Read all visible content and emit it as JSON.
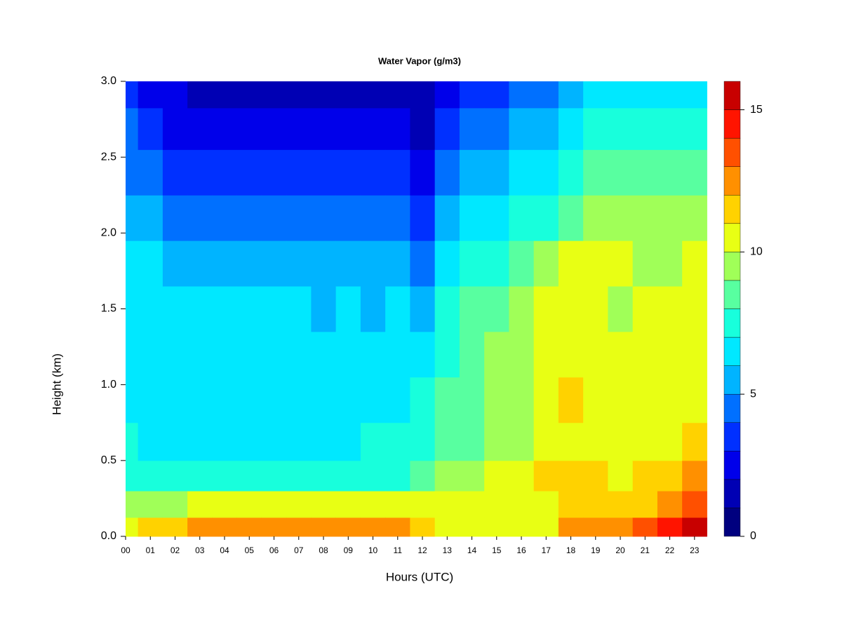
{
  "chart_data": {
    "type": "filled-contour",
    "title": "Water Vapor (g/m3)",
    "x_label": "Hours (UTC)",
    "y_label": "Height (km)",
    "x": [
      0,
      1,
      2,
      3,
      4,
      5,
      6,
      7,
      8,
      9,
      10,
      11,
      12,
      13,
      14,
      15,
      16,
      17,
      18,
      19,
      20,
      21,
      22,
      23
    ],
    "y": [
      0.05,
      0.2,
      0.4,
      0.6,
      0.9,
      1.2,
      1.5,
      1.8,
      2.1,
      2.4,
      2.7,
      2.95
    ],
    "z": [
      [
        10.5,
        9.5,
        7.8,
        7.2,
        6.8,
        6.5,
        6.5,
        6.2,
        5.3,
        4.6,
        4.2,
        3.5
      ],
      [
        11.2,
        9.6,
        7.6,
        6.8,
        6.5,
        6.5,
        6.3,
        6.0,
        5.0,
        4.3,
        3.6,
        2.8
      ],
      [
        11.8,
        9.8,
        7.6,
        6.6,
        6.5,
        6.5,
        6.3,
        5.6,
        4.5,
        3.6,
        2.8,
        2.2
      ],
      [
        12.1,
        10.2,
        7.7,
        6.6,
        6.3,
        6.5,
        6.0,
        5.3,
        4.2,
        3.3,
        2.5,
        1.8
      ],
      [
        12.2,
        10.5,
        7.8,
        6.6,
        6.5,
        6.5,
        6.2,
        5.3,
        4.3,
        3.3,
        2.4,
        1.6
      ],
      [
        12.1,
        10.3,
        7.6,
        6.6,
        6.5,
        6.5,
        6.1,
        5.2,
        4.2,
        3.2,
        2.3,
        1.5
      ],
      [
        12.2,
        10.3,
        7.6,
        6.6,
        6.5,
        6.5,
        6.0,
        5.1,
        4.1,
        3.1,
        2.2,
        1.4
      ],
      [
        12.0,
        10.2,
        7.5,
        6.6,
        6.5,
        6.5,
        6.2,
        5.3,
        4.3,
        3.3,
        2.4,
        1.5
      ],
      [
        12.1,
        10.1,
        7.4,
        6.6,
        6.5,
        6.4,
        5.8,
        5.0,
        4.0,
        3.0,
        2.2,
        1.5
      ],
      [
        12.0,
        10.0,
        7.4,
        6.6,
        6.5,
        6.4,
        6.0,
        5.2,
        4.3,
        3.2,
        2.4,
        1.6
      ],
      [
        12.2,
        10.2,
        7.6,
        7.0,
        6.6,
        6.5,
        5.9,
        5.1,
        4.1,
        3.1,
        2.3,
        1.5
      ],
      [
        12.1,
        10.3,
        7.8,
        7.2,
        6.8,
        6.5,
        6.0,
        5.2,
        4.2,
        3.2,
        2.3,
        1.6
      ],
      [
        11.8,
        10.5,
        8.5,
        7.5,
        7.0,
        6.6,
        5.8,
        4.5,
        3.5,
        2.5,
        1.6,
        1.3
      ],
      [
        10.5,
        10.3,
        9.5,
        8.5,
        8.3,
        7.5,
        7.3,
        6.3,
        5.5,
        4.5,
        3.5,
        2.5
      ],
      [
        10.4,
        10.3,
        9.8,
        8.8,
        8.5,
        8.3,
        8.0,
        7.0,
        6.0,
        5.0,
        4.0,
        3.0
      ],
      [
        10.5,
        10.3,
        10.2,
        9.5,
        9.5,
        9.3,
        8.5,
        7.5,
        6.5,
        5.5,
        4.5,
        3.5
      ],
      [
        10.3,
        10.4,
        10.4,
        9.8,
        9.5,
        9.6,
        9.0,
        8.5,
        7.0,
        6.0,
        5.0,
        4.0
      ],
      [
        10.8,
        10.5,
        11.2,
        10.3,
        10.5,
        10.3,
        10.3,
        9.5,
        7.5,
        6.5,
        5.5,
        4.5
      ],
      [
        12.3,
        11.5,
        11.3,
        10.8,
        11.2,
        10.5,
        10.5,
        10.5,
        8.5,
        7.5,
        6.2,
        5.5
      ],
      [
        12.2,
        11.5,
        11.0,
        10.5,
        10.5,
        10.5,
        10.3,
        10.2,
        9.0,
        8.0,
        7.0,
        6.0
      ],
      [
        12.5,
        11.5,
        10.8,
        10.5,
        10.3,
        10.3,
        9.8,
        10.2,
        9.3,
        8.5,
        7.3,
        6.5
      ],
      [
        13.2,
        11.8,
        11.2,
        10.6,
        10.4,
        10.4,
        10.0,
        9.9,
        9.3,
        8.3,
        7.2,
        6.4
      ],
      [
        14.2,
        12.5,
        11.5,
        10.8,
        10.5,
        10.5,
        10.2,
        9.8,
        9.5,
        8.3,
        7.3,
        6.3
      ],
      [
        15.2,
        13.5,
        12.0,
        11.3,
        10.8,
        10.5,
        10.5,
        10.2,
        9.5,
        8.5,
        7.5,
        6.5
      ]
    ],
    "xlim": [
      0,
      23.8
    ],
    "xticks": [
      {
        "value": 0,
        "label": "00"
      },
      {
        "value": 1,
        "label": "01"
      },
      {
        "value": 2,
        "label": "02"
      },
      {
        "value": 3,
        "label": "03"
      },
      {
        "value": 4,
        "label": "04"
      },
      {
        "value": 5,
        "label": "05"
      },
      {
        "value": 6,
        "label": "06"
      },
      {
        "value": 7,
        "label": "07"
      },
      {
        "value": 8,
        "label": "08"
      },
      {
        "value": 9,
        "label": "09"
      },
      10,
      11,
      12,
      13,
      14,
      15,
      16,
      17,
      18,
      19,
      20,
      21,
      22,
      23
    ],
    "ylim": [
      0,
      3
    ],
    "yticks": [
      {
        "value": 0,
        "label": "0.0"
      },
      0.5,
      {
        "value": 1,
        "label": "1.0"
      },
      1.5,
      {
        "value": 2,
        "label": "2.0"
      },
      2.5,
      {
        "value": 3,
        "label": "3.0"
      }
    ],
    "levels": [
      0,
      1,
      2,
      3,
      4,
      5,
      6,
      7,
      8,
      9,
      10,
      11,
      12,
      13,
      14,
      15,
      16
    ],
    "colors": [
      "#00007f",
      "#0000b4",
      "#0000ea",
      "#0030ff",
      "#0070ff",
      "#00b4ff",
      "#00e8ff",
      "#18ffdc",
      "#58ffa0",
      "#a0ff58",
      "#e8ff14",
      "#ffd200",
      "#ff9000",
      "#ff5000",
      "#ff1400",
      "#c80000"
    ],
    "colorbar_lim": [
      0,
      16
    ],
    "colorbar_ticks": [
      0,
      5,
      10,
      15
    ]
  }
}
